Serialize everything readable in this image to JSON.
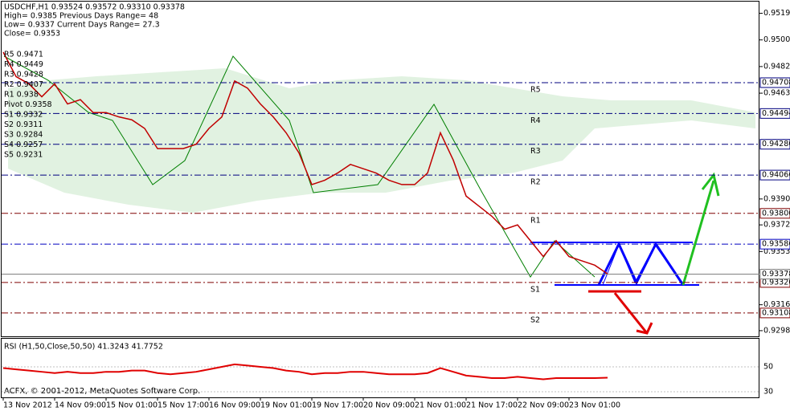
{
  "chart_data": {
    "type": "line",
    "info": [
      "USDCHF,H1  0.93524 0.93572 0.93310 0.93378",
      "High= 0.9385    Previous Days Range= 48",
      "Low= 0.9337    Current Days Range= 27.3",
      "Close= 0.9353"
    ],
    "pivots": [
      "R5 0.9471",
      "R4 0.9449",
      "R3 0.9428",
      "R2 0.9407",
      "R1 0.938",
      "Pivot 0.9358",
      "S1 0.9332",
      "S2 0.9311",
      "S3 0.9284",
      "S4 0.9257",
      "S5 0.9231"
    ],
    "categories": [
      "13 Nov 2012",
      null,
      null,
      null,
      "14 Nov 09:00",
      null,
      null,
      null,
      "15 Nov 01:00",
      null,
      null,
      null,
      "15 Nov 17:00",
      null,
      null,
      null,
      "16 Nov 09:00",
      null,
      null,
      null,
      "19 Nov 01:00",
      null,
      null,
      null,
      "19 Nov 17:00",
      null,
      null,
      null,
      "20 Nov 09:00",
      null,
      null,
      null,
      "21 Nov 01:00",
      null,
      null,
      null,
      "21 Nov 17:00",
      null,
      null,
      null,
      "22 Nov 09:00",
      null,
      null,
      null,
      "23 Nov 01:00",
      null,
      null,
      null
    ],
    "values": [
      0.9492,
      0.9475,
      0.947,
      0.9461,
      0.947,
      0.9456,
      0.9459,
      0.945,
      0.945,
      0.9447,
      0.9445,
      0.9439,
      0.9425,
      0.9425,
      0.9425,
      0.9428,
      0.9439,
      0.9447,
      0.9472,
      0.9467,
      0.9456,
      0.9447,
      0.9436,
      0.9422,
      0.94,
      0.9403,
      0.9408,
      0.9414,
      0.9411,
      0.9408,
      0.9403,
      0.94,
      0.94,
      0.9408,
      0.9436,
      0.9417,
      0.9392,
      0.9385,
      0.9378,
      0.9369,
      0.9372,
      0.9361,
      0.935,
      0.9361,
      0.935,
      0.9347,
      0.9344,
      0.9338
    ],
    "color": "#c00000",
    "ylim": [
      0.9294,
      0.9526
    ],
    "yticks": [
      {
        "value": 0.9519,
        "label": "0.95190"
      },
      0.95005,
      {
        "value": 0.9482,
        "label": "0.94820"
      },
      0.94635,
      {
        "value": 0.939,
        "label": "0.93900"
      },
      {
        "value": 0.9372,
        "label": "0.93720"
      },
      0.93535,
      0.93165,
      0.92985
    ],
    "levels": [
      {
        "value": 0.94708,
        "label": "0.94708",
        "name": "R5",
        "color": "#00007f"
      },
      {
        "value": 0.94494,
        "label": "0.94494",
        "name": "R4",
        "color": "#00007f"
      },
      {
        "value": 0.9428,
        "label": "0.94280",
        "name": "R3",
        "color": "#00007f"
      },
      {
        "value": 0.94066,
        "label": "0.94066",
        "name": "R2",
        "color": "#00007f"
      },
      {
        "value": 0.938,
        "label": "0.93800",
        "name": "R1",
        "color": "#7f0000"
      },
      {
        "value": 0.93586,
        "label": "0.93586",
        "color": "#0000c0"
      },
      {
        "value": 0.9332,
        "label": "0.93320",
        "name": "S1",
        "color": "#7f0000"
      },
      {
        "value": 0.93108,
        "label": "0.93108",
        "name": "S2",
        "color": "#7f0000"
      }
    ],
    "last": {
      "value": 0.93378,
      "label": "0.93378"
    },
    "copyright": "ACFX, © 2001-2012, MetaQuotes Software Corp.",
    "rsi": {
      "title": "RSI (H1,50,Close,50,50) 41.3243 41.7752",
      "ylim": [
        25.5,
        71.9
      ],
      "yticks": [
        30,
        50
      ],
      "color": "#e00000",
      "values": [
        49,
        48,
        47,
        46,
        45,
        46,
        45,
        45,
        46,
        46,
        47,
        47,
        45,
        44,
        45,
        46,
        48,
        50,
        52,
        51,
        50,
        49,
        47,
        46,
        44,
        45,
        45,
        46,
        46,
        45,
        44,
        44,
        44,
        45,
        49,
        46,
        43,
        42,
        41,
        41,
        42,
        41,
        40,
        41,
        41,
        41,
        41,
        41.3243
      ]
    }
  }
}
